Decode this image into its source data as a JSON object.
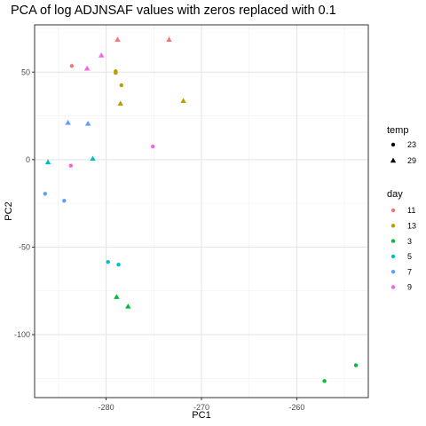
{
  "chart_data": {
    "type": "scatter",
    "title": "PCA of log ADJNSAF values with zeros replaced with 0.1",
    "xlabel": "PC1",
    "ylabel": "PC2",
    "xlim": [
      -287.5,
      -252.5
    ],
    "ylim": [
      -136,
      77
    ],
    "x_ticks": [
      -280,
      -270,
      -260
    ],
    "y_ticks": [
      -100,
      -50,
      0,
      50
    ],
    "x_tick_labels": [
      "-280",
      "-270",
      "-260"
    ],
    "y_tick_labels": [
      "-100",
      "-50",
      "0",
      "50"
    ],
    "grid": true,
    "legend_placement": "right",
    "legends": {
      "temp": {
        "title": "temp",
        "entries": [
          {
            "label": "23",
            "shape": "circle"
          },
          {
            "label": "29",
            "shape": "triangle"
          }
        ]
      },
      "day": {
        "title": "day",
        "entries": [
          {
            "label": "11",
            "color": "#F8766D"
          },
          {
            "label": "13",
            "color": "#B79F00"
          },
          {
            "label": "3",
            "color": "#00BA38"
          },
          {
            "label": "5",
            "color": "#00BFC4"
          },
          {
            "label": "7",
            "color": "#619CFF"
          },
          {
            "label": "9",
            "color": "#F564E3"
          }
        ]
      }
    },
    "points": [
      {
        "x": -278.8,
        "y": 68.5,
        "day": "11",
        "temp": "29"
      },
      {
        "x": -273.4,
        "y": 68.5,
        "day": "11",
        "temp": "29"
      },
      {
        "x": -283.6,
        "y": 53.5,
        "day": "11",
        "temp": "23"
      },
      {
        "x": -279.0,
        "y": 50.5,
        "day": "13",
        "temp": "23"
      },
      {
        "x": -279.0,
        "y": 49.5,
        "day": "13",
        "temp": "23"
      },
      {
        "x": -278.4,
        "y": 42.5,
        "day": "13",
        "temp": "23"
      },
      {
        "x": -278.5,
        "y": 32.0,
        "day": "13",
        "temp": "29"
      },
      {
        "x": -271.9,
        "y": 33.5,
        "day": "13",
        "temp": "29"
      },
      {
        "x": -280.5,
        "y": 59.5,
        "day": "9",
        "temp": "29"
      },
      {
        "x": -282.0,
        "y": 52.0,
        "day": "9",
        "temp": "29"
      },
      {
        "x": -275.1,
        "y": 7.5,
        "day": "9",
        "temp": "23"
      },
      {
        "x": -283.7,
        "y": -3.5,
        "day": "9",
        "temp": "23"
      },
      {
        "x": -284.0,
        "y": 21.0,
        "day": "7",
        "temp": "29"
      },
      {
        "x": -281.9,
        "y": 20.5,
        "day": "7",
        "temp": "29"
      },
      {
        "x": -286.4,
        "y": -19.5,
        "day": "7",
        "temp": "23"
      },
      {
        "x": -284.4,
        "y": -23.5,
        "day": "7",
        "temp": "23"
      },
      {
        "x": -286.1,
        "y": -1.5,
        "day": "5",
        "temp": "29"
      },
      {
        "x": -281.4,
        "y": 0.5,
        "day": "5",
        "temp": "29"
      },
      {
        "x": -279.8,
        "y": -58.5,
        "day": "5",
        "temp": "23"
      },
      {
        "x": -278.7,
        "y": -60.0,
        "day": "5",
        "temp": "23"
      },
      {
        "x": -278.9,
        "y": -78.5,
        "day": "3",
        "temp": "29"
      },
      {
        "x": -277.7,
        "y": -84.0,
        "day": "3",
        "temp": "29"
      },
      {
        "x": -257.1,
        "y": -126.5,
        "day": "3",
        "temp": "23"
      },
      {
        "x": -253.8,
        "y": -117.5,
        "day": "3",
        "temp": "23"
      }
    ]
  }
}
